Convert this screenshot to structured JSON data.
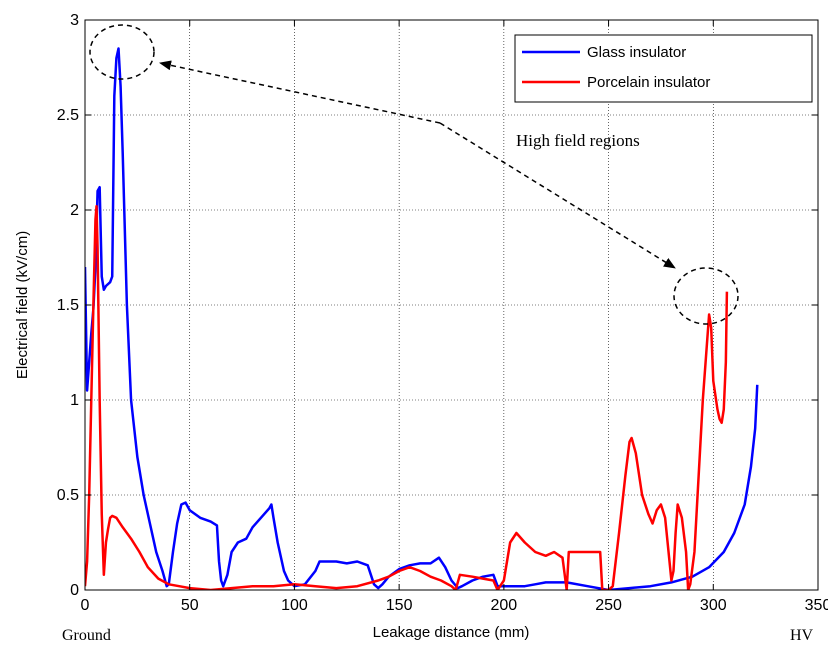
{
  "chart_data": {
    "type": "line",
    "xlabel": "Leakage distance (mm)",
    "ylabel": "Electrical field (kV/cm)",
    "xlim": [
      0,
      350
    ],
    "ylim": [
      0,
      3
    ],
    "xticks": [
      0,
      50,
      100,
      150,
      200,
      250,
      300,
      350
    ],
    "yticks": [
      0,
      0.5,
      1,
      1.5,
      2,
      2.5,
      3
    ],
    "grid": true,
    "legend_position": "top-right",
    "annotations": {
      "high_field": "High field regions",
      "ground": "Ground",
      "hv": "HV"
    },
    "series": [
      {
        "name": "Glass insulator",
        "color": "#0000ff",
        "points": [
          [
            0,
            1.7
          ],
          [
            1,
            1.05
          ],
          [
            2,
            1.2
          ],
          [
            3,
            1.35
          ],
          [
            4,
            1.48
          ],
          [
            5,
            1.7
          ],
          [
            6,
            2.1
          ],
          [
            7,
            2.12
          ],
          [
            8,
            1.65
          ],
          [
            9,
            1.58
          ],
          [
            10,
            1.6
          ],
          [
            12,
            1.62
          ],
          [
            13,
            1.65
          ],
          [
            14,
            2.6
          ],
          [
            15,
            2.8
          ],
          [
            16,
            2.85
          ],
          [
            17,
            2.65
          ],
          [
            18,
            2.3
          ],
          [
            20,
            1.5
          ],
          [
            22,
            1.0
          ],
          [
            25,
            0.7
          ],
          [
            28,
            0.5
          ],
          [
            31,
            0.35
          ],
          [
            34,
            0.2
          ],
          [
            37,
            0.1
          ],
          [
            39,
            0.02
          ],
          [
            40,
            0.03
          ],
          [
            42,
            0.2
          ],
          [
            44,
            0.35
          ],
          [
            46,
            0.45
          ],
          [
            48,
            0.46
          ],
          [
            50,
            0.42
          ],
          [
            55,
            0.38
          ],
          [
            60,
            0.36
          ],
          [
            63,
            0.34
          ],
          [
            64,
            0.15
          ],
          [
            65,
            0.05
          ],
          [
            66,
            0.02
          ],
          [
            68,
            0.08
          ],
          [
            70,
            0.2
          ],
          [
            73,
            0.25
          ],
          [
            77,
            0.27
          ],
          [
            80,
            0.33
          ],
          [
            84,
            0.38
          ],
          [
            88,
            0.43
          ],
          [
            89,
            0.45
          ],
          [
            90,
            0.38
          ],
          [
            92,
            0.25
          ],
          [
            95,
            0.1
          ],
          [
            97,
            0.05
          ],
          [
            100,
            0.02
          ],
          [
            105,
            0.03
          ],
          [
            110,
            0.1
          ],
          [
            112,
            0.15
          ],
          [
            120,
            0.15
          ],
          [
            125,
            0.14
          ],
          [
            130,
            0.15
          ],
          [
            135,
            0.13
          ],
          [
            138,
            0.03
          ],
          [
            140,
            0.01
          ],
          [
            142,
            0.03
          ],
          [
            145,
            0.07
          ],
          [
            150,
            0.11
          ],
          [
            155,
            0.13
          ],
          [
            160,
            0.14
          ],
          [
            165,
            0.14
          ],
          [
            169,
            0.17
          ],
          [
            172,
            0.12
          ],
          [
            175,
            0.05
          ],
          [
            178,
            0.01
          ],
          [
            180,
            0.02
          ],
          [
            185,
            0.05
          ],
          [
            190,
            0.07
          ],
          [
            195,
            0.08
          ],
          [
            197,
            0.02
          ],
          [
            200,
            0.02
          ],
          [
            210,
            0.02
          ],
          [
            215,
            0.03
          ],
          [
            220,
            0.04
          ],
          [
            230,
            0.04
          ],
          [
            240,
            0.02
          ],
          [
            250,
            0.0
          ],
          [
            260,
            0.01
          ],
          [
            270,
            0.02
          ],
          [
            280,
            0.04
          ],
          [
            290,
            0.07
          ],
          [
            298,
            0.12
          ],
          [
            305,
            0.2
          ],
          [
            310,
            0.3
          ],
          [
            315,
            0.45
          ],
          [
            318,
            0.65
          ],
          [
            320,
            0.85
          ],
          [
            321,
            1.08
          ]
        ]
      },
      {
        "name": "Porcelain insulator",
        "color": "#ff0000",
        "points": [
          [
            0,
            0.02
          ],
          [
            1,
            0.15
          ],
          [
            2,
            0.5
          ],
          [
            3,
            1.0
          ],
          [
            4,
            1.5
          ],
          [
            5,
            1.95
          ],
          [
            5.5,
            2.02
          ],
          [
            6,
            1.8
          ],
          [
            7,
            1.0
          ],
          [
            8,
            0.4
          ],
          [
            9,
            0.08
          ],
          [
            10,
            0.25
          ],
          [
            11,
            0.32
          ],
          [
            12,
            0.38
          ],
          [
            13,
            0.39
          ],
          [
            15,
            0.38
          ],
          [
            18,
            0.33
          ],
          [
            22,
            0.27
          ],
          [
            26,
            0.2
          ],
          [
            30,
            0.12
          ],
          [
            35,
            0.06
          ],
          [
            40,
            0.03
          ],
          [
            45,
            0.02
          ],
          [
            50,
            0.01
          ],
          [
            60,
            0.0
          ],
          [
            70,
            0.01
          ],
          [
            80,
            0.02
          ],
          [
            90,
            0.02
          ],
          [
            100,
            0.03
          ],
          [
            110,
            0.02
          ],
          [
            120,
            0.01
          ],
          [
            130,
            0.02
          ],
          [
            140,
            0.05
          ],
          [
            145,
            0.07
          ],
          [
            150,
            0.1
          ],
          [
            155,
            0.12
          ],
          [
            160,
            0.1
          ],
          [
            165,
            0.07
          ],
          [
            170,
            0.05
          ],
          [
            175,
            0.02
          ],
          [
            177,
            0.0
          ],
          [
            179,
            0.08
          ],
          [
            185,
            0.07
          ],
          [
            190,
            0.06
          ],
          [
            195,
            0.05
          ],
          [
            197,
            0.0
          ],
          [
            200,
            0.05
          ],
          [
            203,
            0.25
          ],
          [
            206,
            0.3
          ],
          [
            210,
            0.25
          ],
          [
            215,
            0.2
          ],
          [
            220,
            0.18
          ],
          [
            224,
            0.2
          ],
          [
            228,
            0.17
          ],
          [
            230,
            0.0
          ],
          [
            231,
            0.2
          ],
          [
            240,
            0.2
          ],
          [
            246,
            0.2
          ],
          [
            247,
            0.0
          ],
          [
            250,
            0.0
          ],
          [
            252,
            0.02
          ],
          [
            255,
            0.3
          ],
          [
            258,
            0.6
          ],
          [
            260,
            0.78
          ],
          [
            261,
            0.8
          ],
          [
            263,
            0.72
          ],
          [
            266,
            0.5
          ],
          [
            269,
            0.4
          ],
          [
            271,
            0.35
          ],
          [
            273,
            0.42
          ],
          [
            275,
            0.45
          ],
          [
            277,
            0.38
          ],
          [
            280,
            0.05
          ],
          [
            281,
            0.1
          ],
          [
            282,
            0.3
          ],
          [
            283,
            0.45
          ],
          [
            285,
            0.38
          ],
          [
            287,
            0.2
          ],
          [
            288,
            0.0
          ],
          [
            289,
            0.03
          ],
          [
            291,
            0.2
          ],
          [
            293,
            0.6
          ],
          [
            295,
            1.0
          ],
          [
            297,
            1.3
          ],
          [
            298,
            1.45
          ],
          [
            299,
            1.38
          ],
          [
            300,
            1.1
          ],
          [
            302,
            0.95
          ],
          [
            303,
            0.9
          ],
          [
            304,
            0.88
          ],
          [
            305,
            0.95
          ],
          [
            306,
            1.2
          ],
          [
            306.5,
            1.57
          ]
        ]
      }
    ]
  }
}
